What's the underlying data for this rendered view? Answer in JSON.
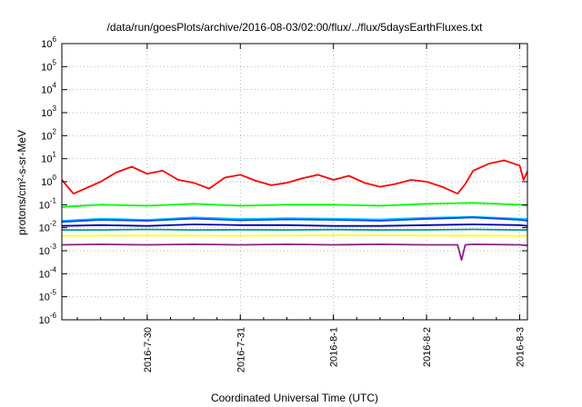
{
  "chart_data": {
    "type": "line",
    "title": "/data/run/goesPlots/archive/2016-08-03/02:00/flux/../flux/5daysEarthFluxes.txt",
    "xlabel": "Coordinated Universal Time (UTC)",
    "ylabel": "protons/cm²-s-sr-MeV",
    "yscale": "log",
    "ylim": [
      1e-06,
      1000000.0
    ],
    "xlim": [
      "2016-07-29 02:00",
      "2016-08-03 02:00"
    ],
    "grid": true,
    "legend": "none",
    "y_ticks": [
      {
        "value": 1e-06,
        "base": "10",
        "exp": "-6"
      },
      {
        "value": 1e-05,
        "base": "10",
        "exp": "-5"
      },
      {
        "value": 0.0001,
        "base": "10",
        "exp": "-4"
      },
      {
        "value": 0.001,
        "base": "10",
        "exp": "-3"
      },
      {
        "value": 0.01,
        "base": "10",
        "exp": "-2"
      },
      {
        "value": 0.1,
        "base": "10",
        "exp": "-1"
      },
      {
        "value": 1.0,
        "base": "10",
        "exp": "0"
      },
      {
        "value": 10.0,
        "base": "10",
        "exp": "1"
      },
      {
        "value": 100.0,
        "base": "10",
        "exp": "2"
      },
      {
        "value": 1000.0,
        "base": "10",
        "exp": "3"
      },
      {
        "value": 10000.0,
        "base": "10",
        "exp": "4"
      },
      {
        "value": 100000.0,
        "base": "10",
        "exp": "5"
      },
      {
        "value": 1000000.0,
        "base": "10",
        "exp": "6"
      }
    ],
    "x_ticks": [
      {
        "value": "2016-07-30 00:00",
        "label": "2016-7-30"
      },
      {
        "value": "2016-07-31 00:00",
        "label": "2016-7-31"
      },
      {
        "value": "2016-08-01 00:00",
        "label": "2016-8-1"
      },
      {
        "value": "2016-08-02 00:00",
        "label": "2016-8-2"
      },
      {
        "value": "2016-08-03 00:00",
        "label": "2016-8-3"
      }
    ],
    "series": [
      {
        "color": "#ff0000",
        "x": [
          "2016-07-29 02:00",
          "2016-07-29 05:00",
          "2016-07-29 08:00",
          "2016-07-29 12:00",
          "2016-07-29 16:00",
          "2016-07-29 20:00",
          "2016-07-30 00:00",
          "2016-07-30 04:00",
          "2016-07-30 08:00",
          "2016-07-30 12:00",
          "2016-07-30 16:00",
          "2016-07-30 20:00",
          "2016-07-31 00:00",
          "2016-07-31 04:00",
          "2016-07-31 08:00",
          "2016-07-31 12:00",
          "2016-07-31 16:00",
          "2016-07-31 20:00",
          "2016-08-01 00:00",
          "2016-08-01 04:00",
          "2016-08-01 08:00",
          "2016-08-01 12:00",
          "2016-08-01 16:00",
          "2016-08-01 20:00",
          "2016-08-02 00:00",
          "2016-08-02 04:00",
          "2016-08-02 08:00",
          "2016-08-02 10:00",
          "2016-08-02 12:00",
          "2016-08-02 16:00",
          "2016-08-02 20:00",
          "2016-08-03 00:00",
          "2016-08-03 01:00",
          "2016-08-03 02:00"
        ],
        "values": [
          1.2,
          0.3,
          0.5,
          1.0,
          2.5,
          4.5,
          2.2,
          3.0,
          1.2,
          0.9,
          0.5,
          1.5,
          2.0,
          1.1,
          0.7,
          0.9,
          1.4,
          2.0,
          1.2,
          1.8,
          0.9,
          0.6,
          0.8,
          1.2,
          1.0,
          0.6,
          0.3,
          0.8,
          3.0,
          6.0,
          8.5,
          5.0,
          1.2,
          2.8
        ]
      },
      {
        "color": "#00ff00",
        "x": [
          "2016-07-29 02:00",
          "2016-07-29 12:00",
          "2016-07-30 00:00",
          "2016-07-30 12:00",
          "2016-07-31 00:00",
          "2016-07-31 12:00",
          "2016-08-01 00:00",
          "2016-08-01 12:00",
          "2016-08-02 00:00",
          "2016-08-02 12:00",
          "2016-08-03 00:00",
          "2016-08-03 02:00"
        ],
        "values": [
          0.08,
          0.1,
          0.09,
          0.11,
          0.09,
          0.1,
          0.1,
          0.09,
          0.11,
          0.12,
          0.1,
          0.09
        ]
      },
      {
        "color": "#00ccff",
        "x": [
          "2016-07-29 02:00",
          "2016-07-29 12:00",
          "2016-07-30 00:00",
          "2016-07-30 12:00",
          "2016-07-31 00:00",
          "2016-07-31 12:00",
          "2016-08-01 00:00",
          "2016-08-01 12:00",
          "2016-08-02 00:00",
          "2016-08-02 12:00",
          "2016-08-03 00:00",
          "2016-08-03 02:00"
        ],
        "values": [
          0.02,
          0.025,
          0.022,
          0.028,
          0.024,
          0.026,
          0.025,
          0.023,
          0.027,
          0.03,
          0.025,
          0.024
        ]
      },
      {
        "color": "#0044ff",
        "x": [
          "2016-07-29 02:00",
          "2016-07-29 12:00",
          "2016-07-30 00:00",
          "2016-07-30 12:00",
          "2016-07-31 00:00",
          "2016-07-31 12:00",
          "2016-08-01 00:00",
          "2016-08-01 12:00",
          "2016-08-02 00:00",
          "2016-08-02 12:00",
          "2016-08-03 00:00",
          "2016-08-03 02:00"
        ],
        "values": [
          0.018,
          0.022,
          0.02,
          0.025,
          0.021,
          0.023,
          0.022,
          0.02,
          0.024,
          0.028,
          0.022,
          0.02
        ]
      },
      {
        "color": "#0000aa",
        "x": [
          "2016-07-29 02:00",
          "2016-07-29 12:00",
          "2016-07-30 00:00",
          "2016-07-30 12:00",
          "2016-07-31 00:00",
          "2016-07-31 12:00",
          "2016-08-01 00:00",
          "2016-08-01 12:00",
          "2016-08-02 00:00",
          "2016-08-02 12:00",
          "2016-08-03 00:00",
          "2016-08-03 02:00"
        ],
        "values": [
          0.012,
          0.013,
          0.012,
          0.014,
          0.013,
          0.013,
          0.012,
          0.012,
          0.013,
          0.014,
          0.013,
          0.012
        ]
      },
      {
        "color": "#009999",
        "x": [
          "2016-07-29 02:00",
          "2016-07-29 12:00",
          "2016-07-30 00:00",
          "2016-07-30 12:00",
          "2016-07-31 00:00",
          "2016-07-31 12:00",
          "2016-08-01 00:00",
          "2016-08-01 12:00",
          "2016-08-02 00:00",
          "2016-08-02 12:00",
          "2016-08-03 00:00",
          "2016-08-03 02:00"
        ],
        "values": [
          0.008,
          0.008,
          0.0085,
          0.008,
          0.0082,
          0.008,
          0.0083,
          0.008,
          0.0081,
          0.0085,
          0.008,
          0.008
        ]
      },
      {
        "color": "#ffff00",
        "x": [
          "2016-07-29 02:00",
          "2016-07-30 00:00",
          "2016-07-31 00:00",
          "2016-08-01 00:00",
          "2016-08-02 00:00",
          "2016-08-03 00:00",
          "2016-08-03 02:00"
        ],
        "values": [
          0.0045,
          0.0046,
          0.0045,
          0.0047,
          0.0046,
          0.0045,
          0.0045
        ]
      },
      {
        "color": "#882288",
        "x": [
          "2016-07-29 02:00",
          "2016-07-29 12:00",
          "2016-07-30 00:00",
          "2016-07-30 12:00",
          "2016-07-31 00:00",
          "2016-07-31 12:00",
          "2016-08-01 00:00",
          "2016-08-01 12:00",
          "2016-08-02 00:00",
          "2016-08-02 08:00",
          "2016-08-02 09:00",
          "2016-08-02 10:00",
          "2016-08-02 12:00",
          "2016-08-03 00:00",
          "2016-08-03 02:00"
        ],
        "values": [
          0.0018,
          0.0019,
          0.0018,
          0.0019,
          0.0018,
          0.0019,
          0.0018,
          0.0019,
          0.0018,
          0.0018,
          0.0004,
          0.0018,
          0.0019,
          0.0018,
          0.0017
        ]
      }
    ]
  }
}
